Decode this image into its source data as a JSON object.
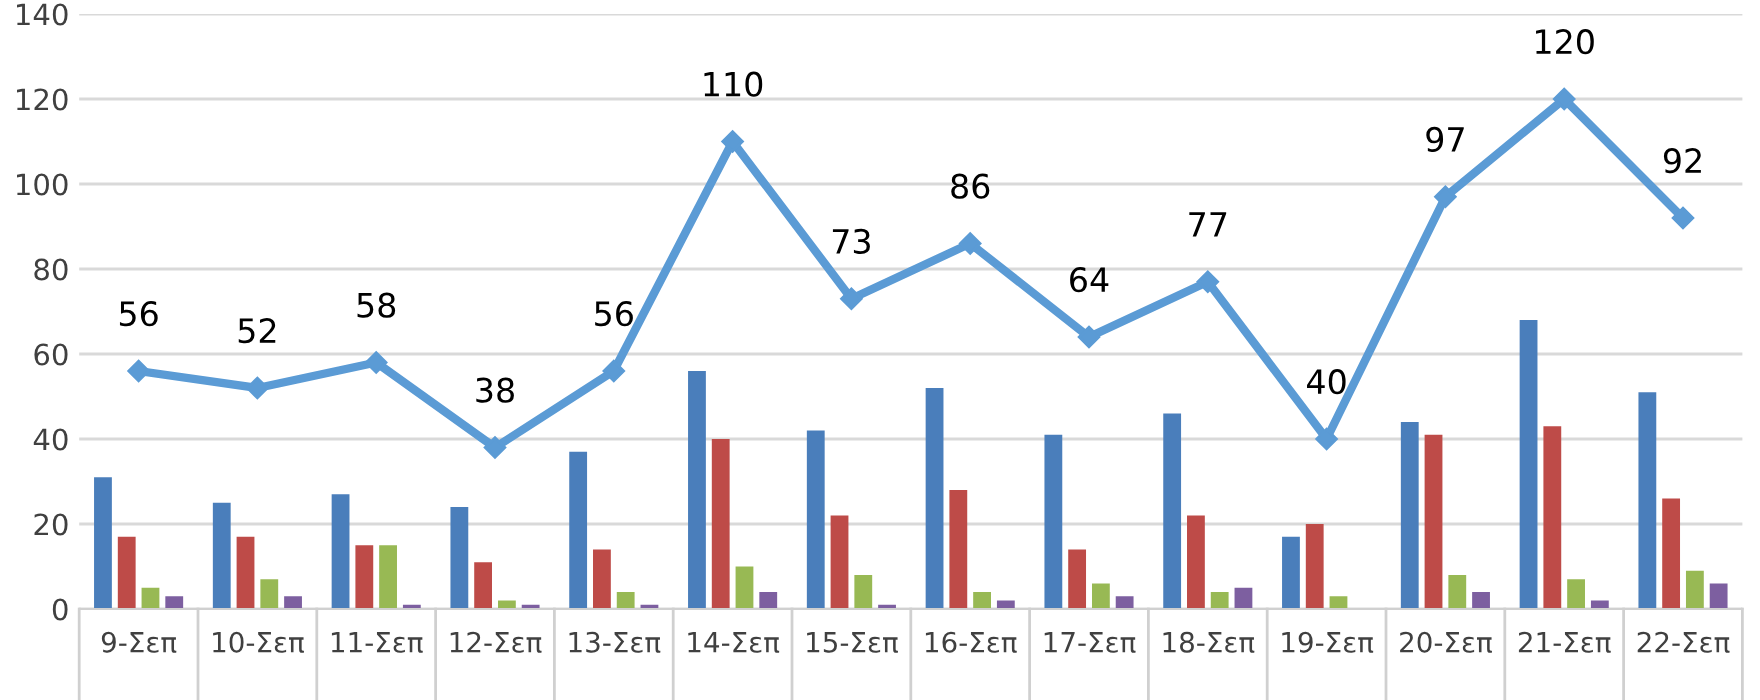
{
  "chart_data": {
    "type": "bar",
    "categories": [
      "9-Σεπ",
      "10-Σεπ",
      "11-Σεπ",
      "12-Σεπ",
      "13-Σεπ",
      "14-Σεπ",
      "15-Σεπ",
      "16-Σεπ",
      "17-Σεπ",
      "18-Σεπ",
      "19-Σεπ",
      "20-Σεπ",
      "21-Σεπ",
      "22-Σεπ"
    ],
    "series": [
      {
        "color": "#4a7ebb",
        "values": [
          31,
          25,
          27,
          24,
          37,
          56,
          42,
          52,
          41,
          46,
          17,
          44,
          68,
          51
        ]
      },
      {
        "color": "#be4b48",
        "values": [
          17,
          17,
          15,
          11,
          14,
          40,
          22,
          28,
          14,
          22,
          20,
          41,
          43,
          26
        ]
      },
      {
        "color": "#98b954",
        "values": [
          5,
          7,
          15,
          2,
          4,
          10,
          8,
          4,
          6,
          4,
          3,
          8,
          7,
          9
        ]
      },
      {
        "color": "#7d5fa0",
        "values": [
          3,
          3,
          1,
          1,
          1,
          4,
          1,
          2,
          3,
          5,
          null,
          4,
          2,
          6
        ]
      },
      {
        "type": "line",
        "color": "#5b9bd5",
        "marker": "diamond",
        "values": [
          56,
          52,
          58,
          38,
          56,
          110,
          73,
          86,
          64,
          77,
          40,
          97,
          120,
          92
        ],
        "value_labels": [
          "56",
          "52",
          "58",
          "38",
          "56",
          "110",
          "73",
          "86",
          "64",
          "77",
          "40",
          "97",
          "120",
          "92"
        ]
      }
    ],
    "ylim": [
      0,
      140
    ],
    "yticks": [
      0,
      20,
      40,
      60,
      80,
      100,
      120,
      140
    ],
    "grid": "y"
  }
}
